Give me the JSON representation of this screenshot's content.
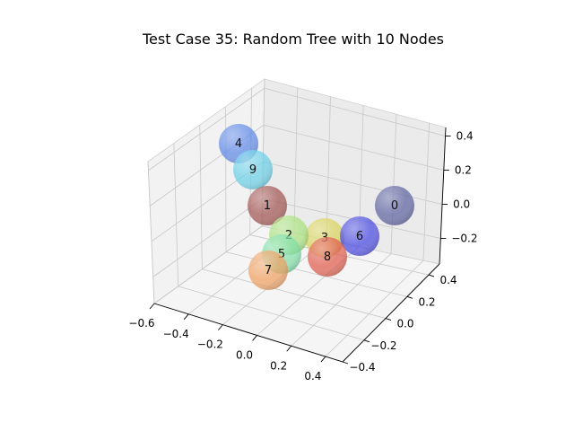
{
  "chart_data": {
    "type": "scatter",
    "title": "Test Case 35: Random Tree with 10 Nodes",
    "xlabel": "",
    "ylabel": "",
    "zlabel": "",
    "xlim": [
      -0.6,
      0.5
    ],
    "ylim": [
      -0.4,
      0.5
    ],
    "zlim": [
      -0.35,
      0.45
    ],
    "x_ticks": [
      "−0.6",
      "−0.4",
      "−0.2",
      "0.0",
      "0.2",
      "0.4"
    ],
    "y_ticks": [
      "−0.4",
      "−0.2",
      "0.0",
      "0.2",
      "0.4"
    ],
    "z_ticks": [
      "−0.2",
      "0.0",
      "0.2",
      "0.4"
    ],
    "grid": true,
    "nodes": [
      {
        "label": "0",
        "color": "#5a5f9e"
      },
      {
        "label": "1",
        "color": "#a0524f"
      },
      {
        "label": "2",
        "color": "#a8e07c"
      },
      {
        "label": "3",
        "color": "#d8d25a"
      },
      {
        "label": "4",
        "color": "#5b86e6"
      },
      {
        "label": "5",
        "color": "#7fdfa8"
      },
      {
        "label": "6",
        "color": "#4646e0"
      },
      {
        "label": "7",
        "color": "#f0a060"
      },
      {
        "label": "8",
        "color": "#e05a4a"
      },
      {
        "label": "9",
        "color": "#68cfe8"
      }
    ]
  }
}
